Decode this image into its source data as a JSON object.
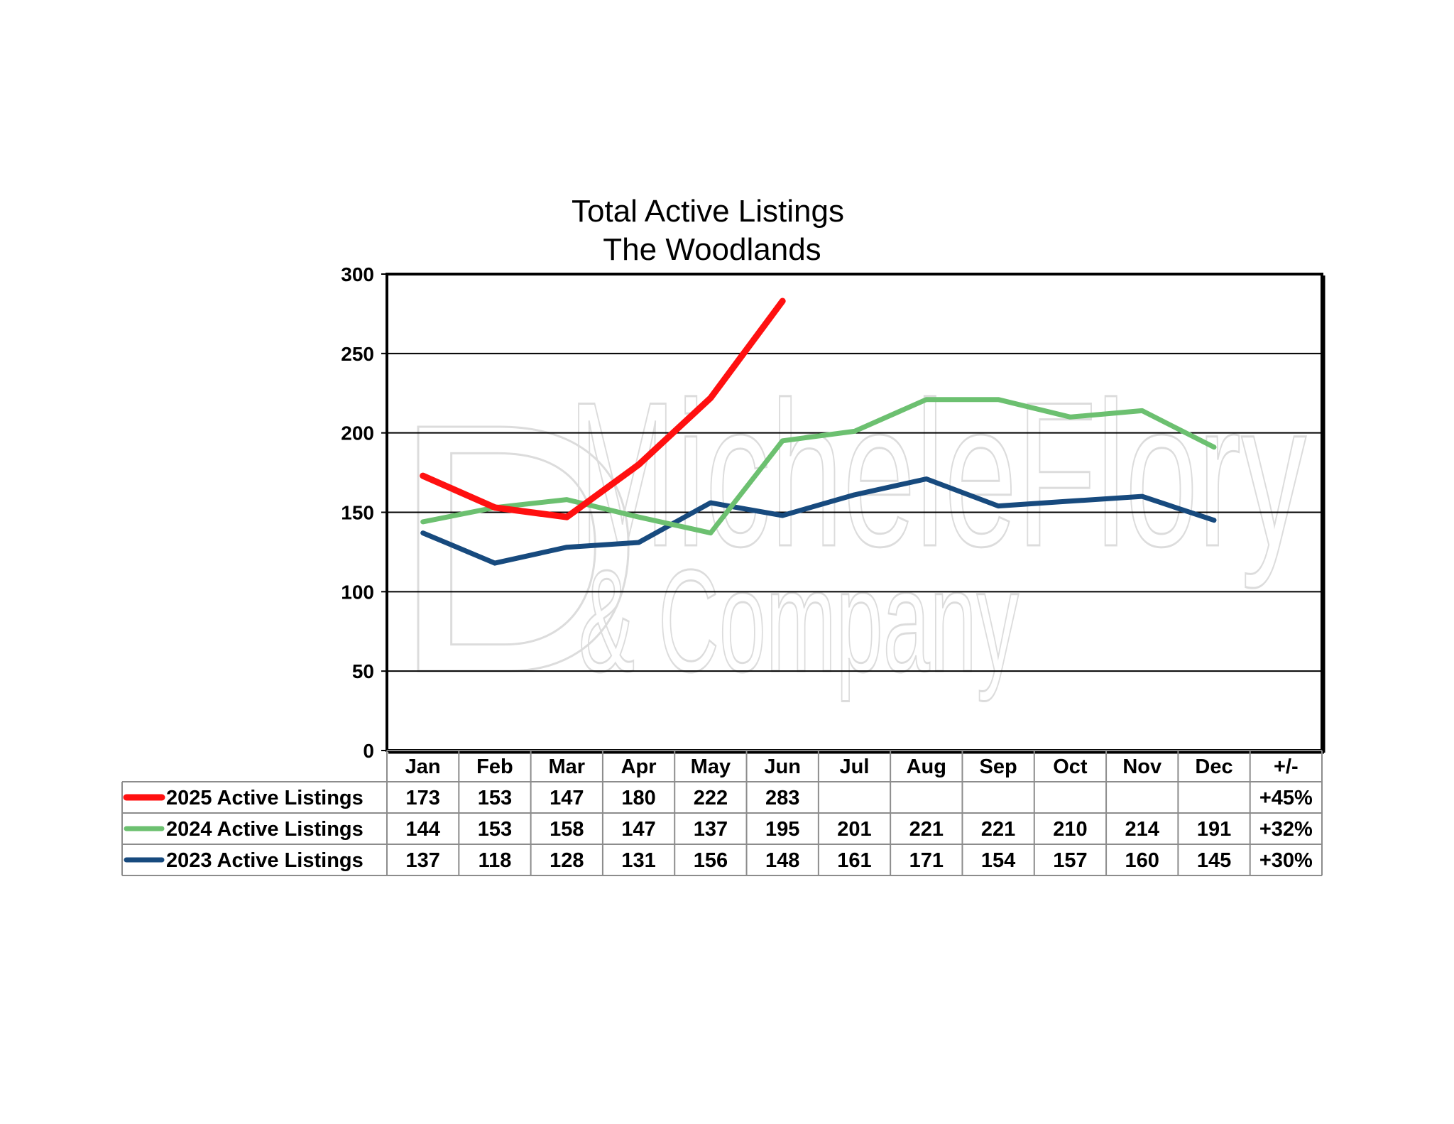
{
  "chart_data": {
    "type": "line",
    "title": [
      "Total Active Listings",
      "The Woodlands"
    ],
    "xlabel": "",
    "ylabel": "",
    "ylim": [
      0,
      300
    ],
    "yticks": [
      0,
      50,
      100,
      150,
      200,
      250,
      300
    ],
    "grid": true,
    "legend": "data-table-below",
    "categories": [
      "Jan",
      "Feb",
      "Mar",
      "Apr",
      "May",
      "Jun",
      "Jul",
      "Aug",
      "Sep",
      "Oct",
      "Nov",
      "Dec"
    ],
    "change_header": "+/-",
    "series": [
      {
        "name": "2025 Active Listings",
        "color": "#ff1010",
        "width": 9,
        "values": [
          173,
          153,
          147,
          180,
          222,
          283,
          null,
          null,
          null,
          null,
          null,
          null
        ],
        "change": "+45%"
      },
      {
        "name": "2024 Active Listings",
        "color": "#6cc070",
        "width": 7,
        "values": [
          144,
          153,
          158,
          147,
          137,
          195,
          201,
          221,
          221,
          210,
          214,
          191
        ],
        "change": "+32%"
      },
      {
        "name": "2023 Active Listings",
        "color": "#174a7e",
        "width": 7,
        "values": [
          137,
          118,
          128,
          131,
          156,
          148,
          161,
          171,
          154,
          157,
          160,
          145
        ],
        "change": "+30%"
      }
    ]
  },
  "watermark": {
    "line1": "MicheleFlory",
    "line2": "& Company",
    "logo_letters": "D"
  }
}
